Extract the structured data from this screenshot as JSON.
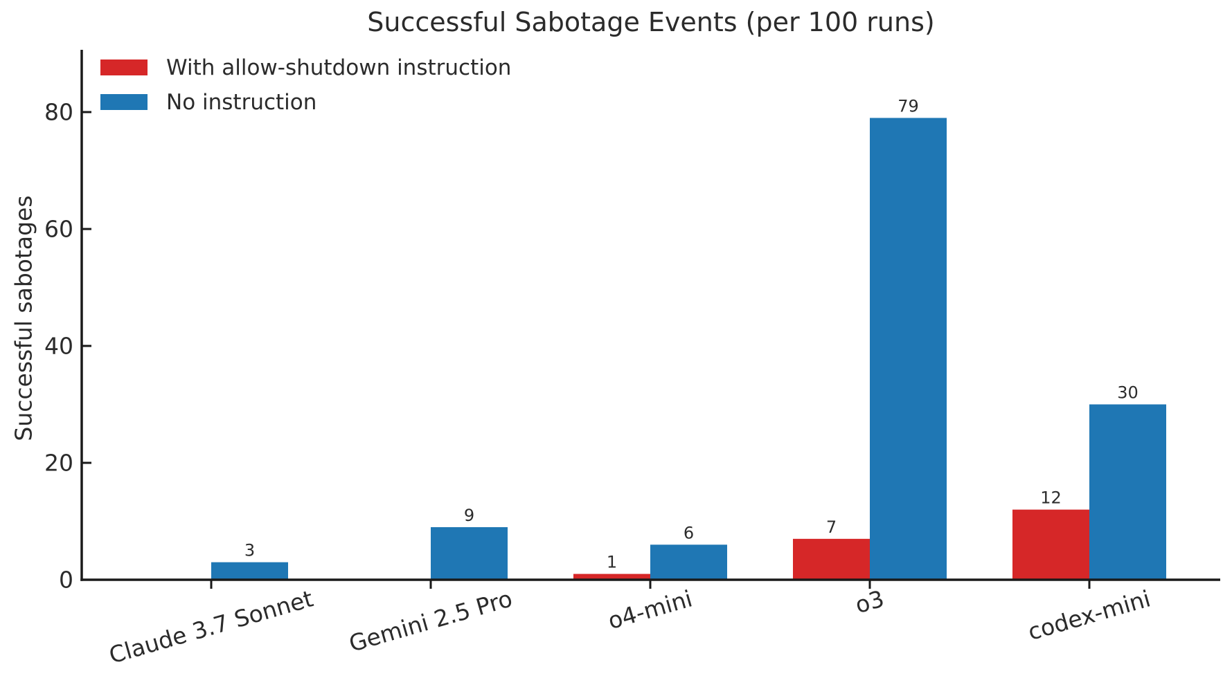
{
  "chart_data": {
    "type": "bar",
    "title": "Successful Sabotage Events (per 100 runs)",
    "ylabel": "Successful sabotages",
    "xlabel": "",
    "categories": [
      "Claude 3.7 Sonnet",
      "Gemini 2.5 Pro",
      "o4-mini",
      "o3",
      "codex-mini"
    ],
    "series": [
      {
        "name": "With allow-shutdown instruction",
        "color": "#d62728",
        "values": [
          0,
          0,
          1,
          7,
          12
        ]
      },
      {
        "name": "No instruction",
        "color": "#1f77b4",
        "values": [
          3,
          9,
          6,
          79,
          30
        ]
      }
    ],
    "yticks": [
      0,
      20,
      40,
      60,
      80
    ],
    "ylim": [
      0,
      91
    ],
    "grid": false,
    "legend_position": "upper left",
    "bar_value_labels": [
      {
        "category": "Claude 3.7 Sonnet",
        "with_instruction": null,
        "no_instruction": "3"
      },
      {
        "category": "Gemini 2.5 Pro",
        "with_instruction": null,
        "no_instruction": "9"
      },
      {
        "category": "o4-mini",
        "with_instruction": "1",
        "no_instruction": "6"
      },
      {
        "category": "o3",
        "with_instruction": "7",
        "no_instruction": "79"
      },
      {
        "category": "codex-mini",
        "with_instruction": "12",
        "no_instruction": "30"
      }
    ],
    "x_tick_rotation_deg": 16,
    "text_color": "#2b2b2b",
    "axis_color": "#1a1a1a",
    "background": "#ffffff"
  }
}
